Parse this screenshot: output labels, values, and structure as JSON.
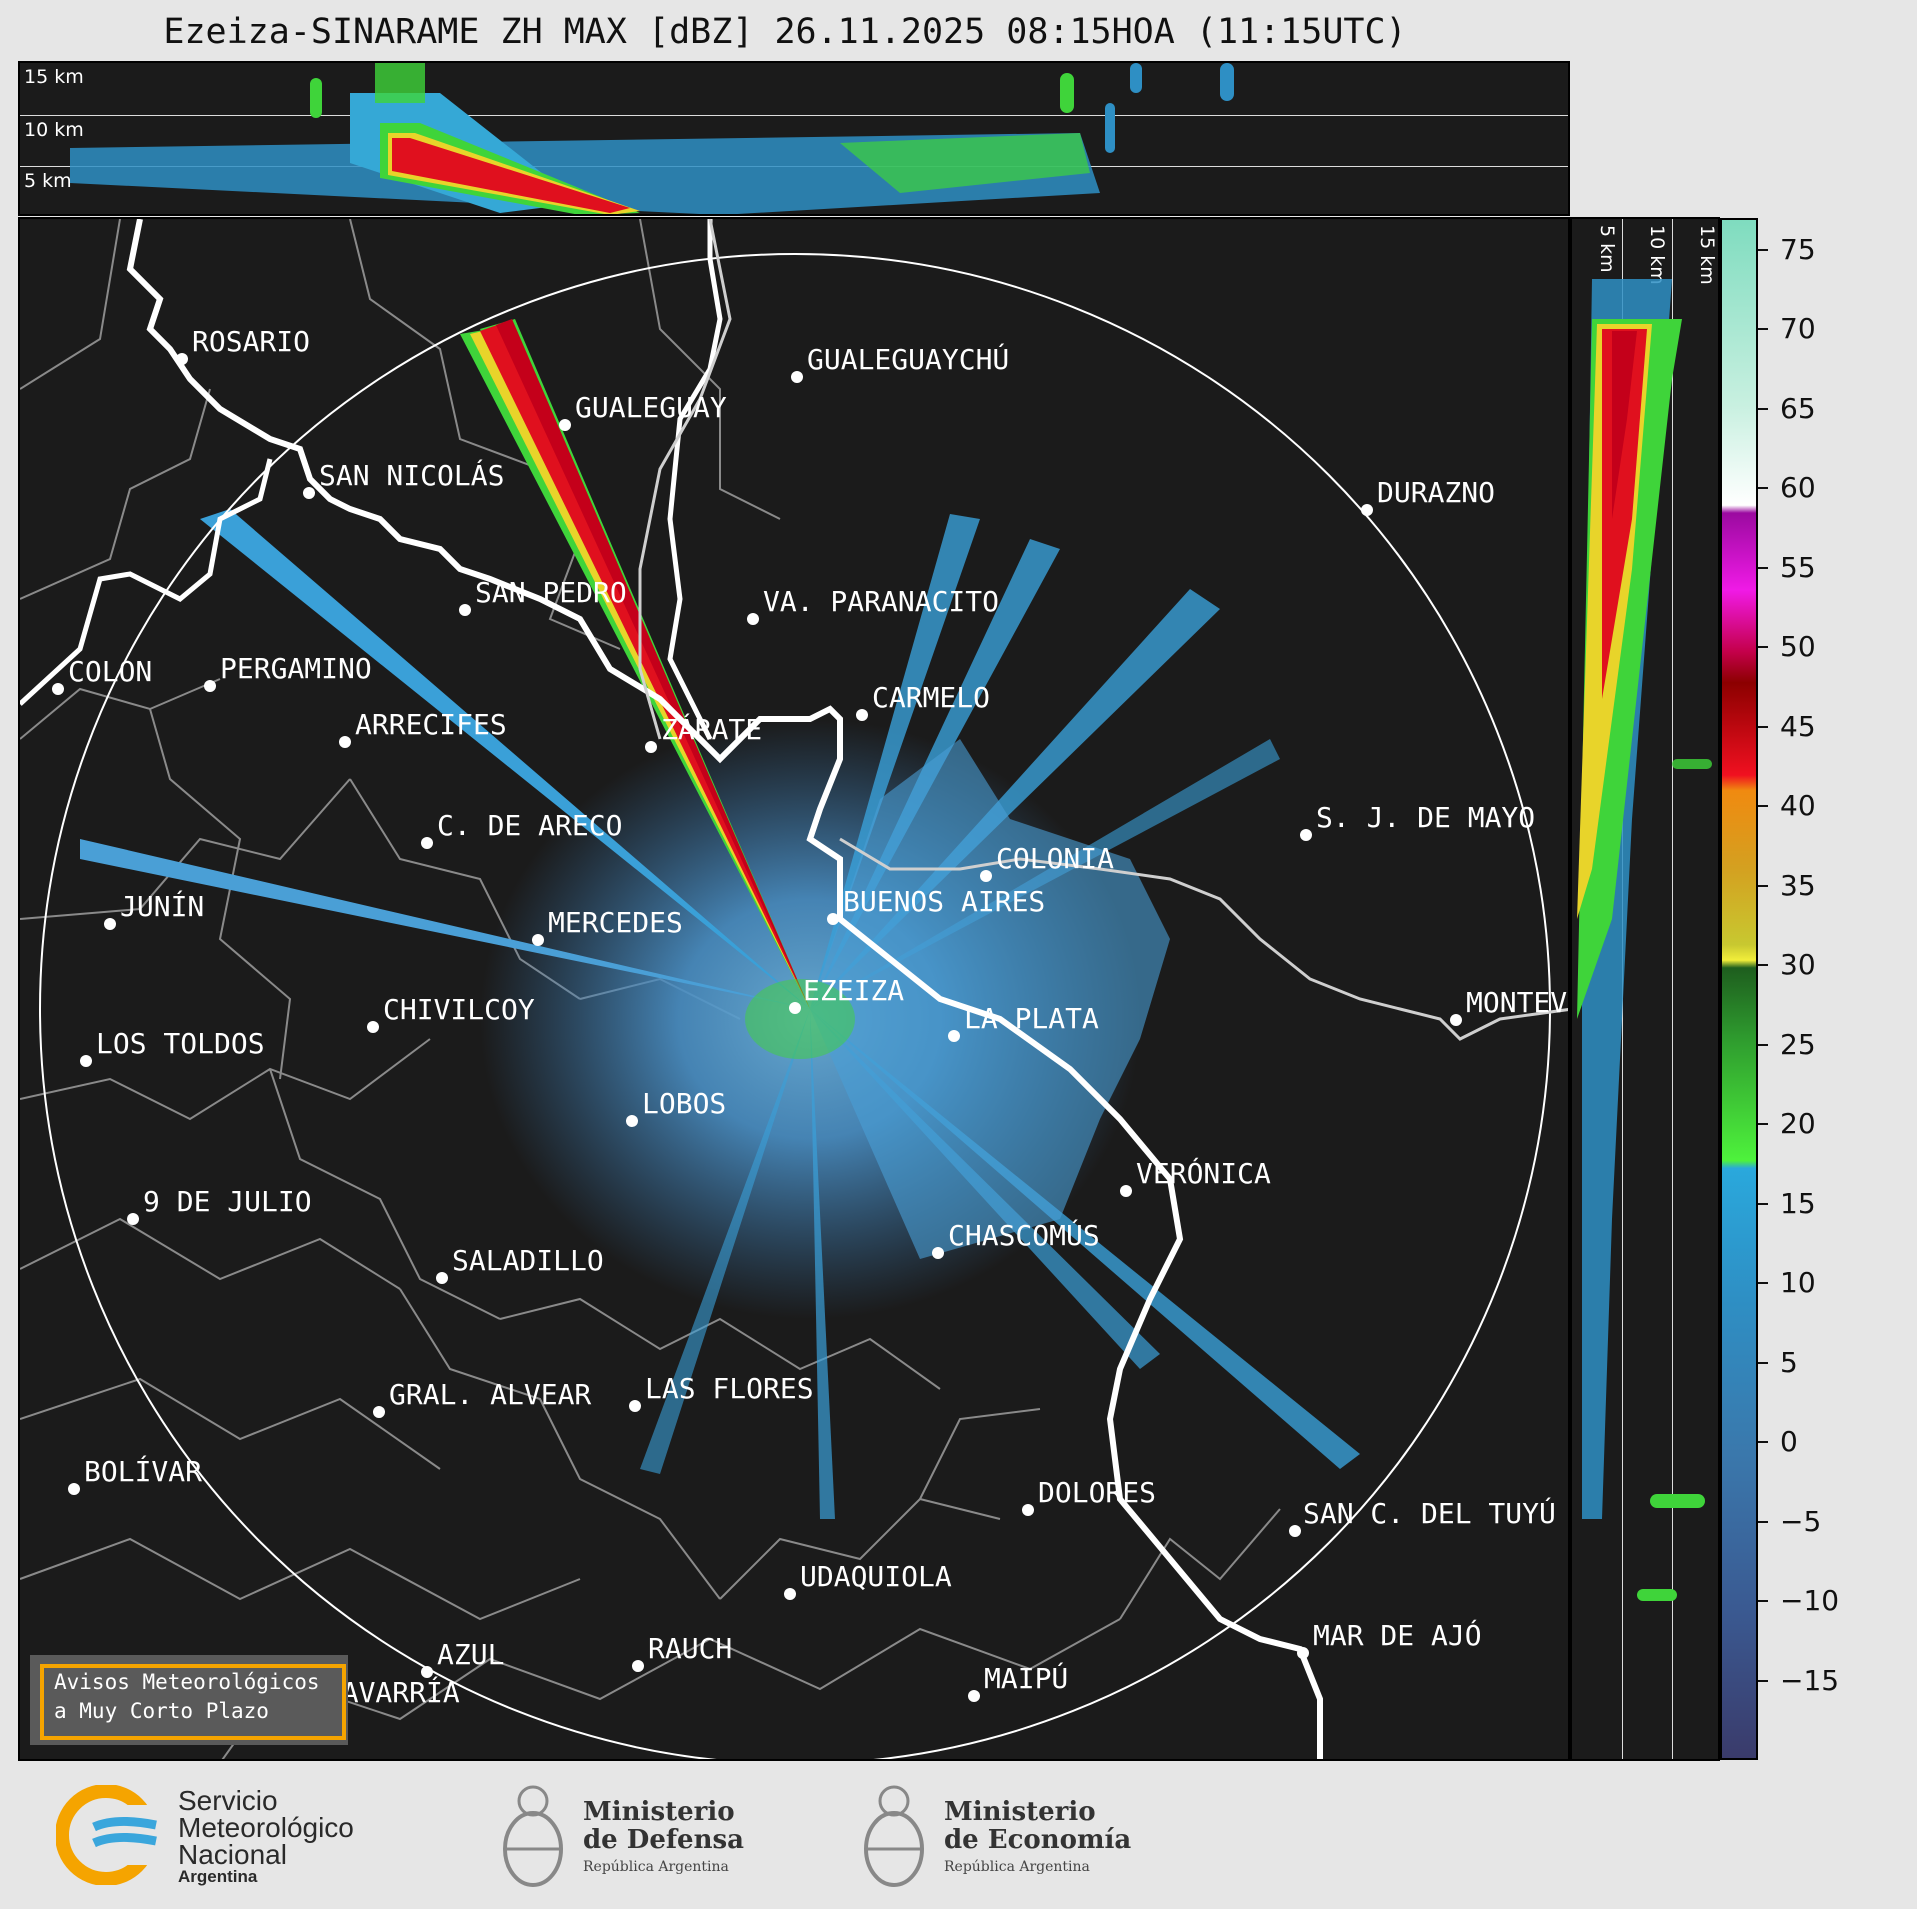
{
  "title": "Ezeiza-SINARAME ZH MAX [dBZ] 26.11.2025 08:15HOA (11:15UTC)",
  "top_panel_km": [
    "15 km",
    "10 km",
    "5 km"
  ],
  "side_panel_km": [
    "5 km",
    "10 km",
    "15 km"
  ],
  "colorbar": {
    "ticks": [
      "75",
      "70",
      "65",
      "60",
      "55",
      "50",
      "45",
      "40",
      "35",
      "30",
      "25",
      "20",
      "15",
      "10",
      "5",
      "0",
      "−5",
      "−10",
      "−15"
    ],
    "min": -20,
    "max": 77
  },
  "cities": [
    {
      "name": "ROSARIO"
    },
    {
      "name": "GUALEGUAYCHÚ"
    },
    {
      "name": "GUALEGUAY"
    },
    {
      "name": "SAN NICOLÁS"
    },
    {
      "name": "DURAZNO"
    },
    {
      "name": "SAN PEDRO"
    },
    {
      "name": "VA. PARANACITO"
    },
    {
      "name": "COLON"
    },
    {
      "name": "PERGAMINO"
    },
    {
      "name": "CARMELO"
    },
    {
      "name": "ARRECIFES"
    },
    {
      "name": "ZÁRATE"
    },
    {
      "name": "S. J. DE MAYO"
    },
    {
      "name": "C. DE ARECO"
    },
    {
      "name": "COLONIA"
    },
    {
      "name": "JUNÍN"
    },
    {
      "name": "BUENOS AIRES"
    },
    {
      "name": "MERCEDES"
    },
    {
      "name": "EZEIZA"
    },
    {
      "name": "MONTEV"
    },
    {
      "name": "CHIVILCOY"
    },
    {
      "name": "LA PLATA"
    },
    {
      "name": "LOS TOLDOS"
    },
    {
      "name": "LOBOS"
    },
    {
      "name": "VERÓNICA"
    },
    {
      "name": "9 DE JULIO"
    },
    {
      "name": "CHASCOMÚS"
    },
    {
      "name": "SALADILLO"
    },
    {
      "name": "GRAL. ALVEAR"
    },
    {
      "name": "LAS FLORES"
    },
    {
      "name": "BOLÍVAR"
    },
    {
      "name": "DOLORES"
    },
    {
      "name": "SAN C. DEL TUYÚ"
    },
    {
      "name": "UDAQUIOLA"
    },
    {
      "name": "AZUL"
    },
    {
      "name": "RAUCH"
    },
    {
      "name": "MAR DE AJÓ"
    },
    {
      "name": "OLAVARRÍA"
    },
    {
      "name": "MAIPÚ"
    }
  ],
  "avisos": {
    "line1": "Avisos Meteorológicos",
    "line2": "a Muy Corto Plazo"
  },
  "logos": {
    "smn": {
      "line1": "Servicio",
      "line2": "Meteorológico",
      "line3": "Nacional",
      "line4": "Argentina"
    },
    "defensa": {
      "line1": "Ministerio",
      "line2": "de Defensa",
      "line3": "República Argentina"
    },
    "economia": {
      "line1": "Ministerio",
      "line2": "de Economía",
      "line3": "República Argentina"
    }
  },
  "colors": {
    "background": "#1b1b1b",
    "page": "#e6e6e6",
    "accent": "#f5a400"
  }
}
